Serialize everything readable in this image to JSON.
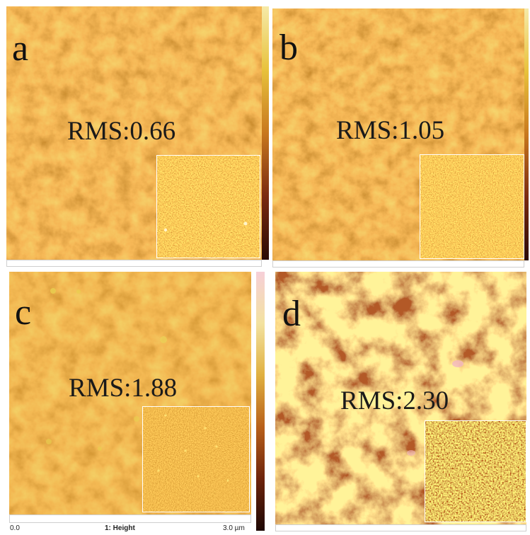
{
  "panels": [
    {
      "letter": "a",
      "rms": "RMS:0.66"
    },
    {
      "letter": "b",
      "rms": "RMS:1.05"
    },
    {
      "letter": "c",
      "rms": "RMS:1.88"
    },
    {
      "letter": "d",
      "rms": "RMS:2.30"
    }
  ],
  "scale_bar": {
    "min": "0.0",
    "channel": "1: Height",
    "max": "3.0 µm"
  },
  "colors": {
    "dark": "#7a2a10",
    "mid": "#c8781e",
    "light": "#e8c23c",
    "highlight": "#f2e070"
  }
}
